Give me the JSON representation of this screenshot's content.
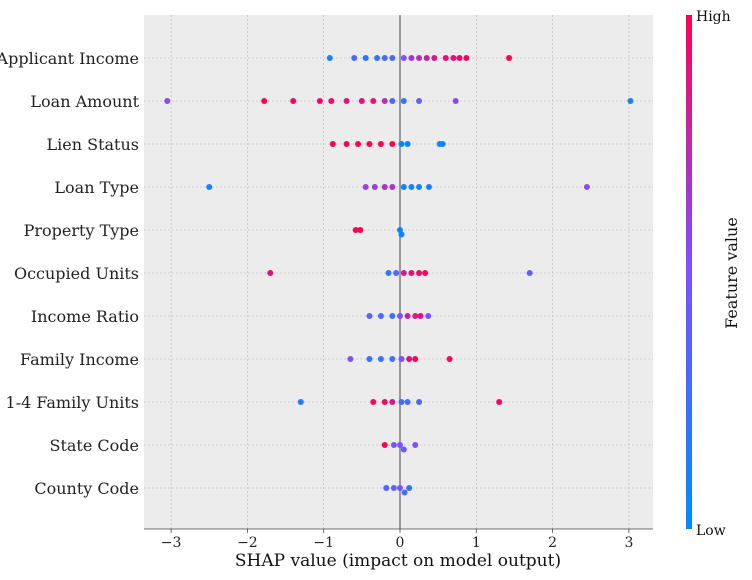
{
  "chart_data": {
    "type": "scatter",
    "subtype": "shap-beeswarm",
    "title": "",
    "xlabel": "SHAP value (impact on model output)",
    "ylabel": "",
    "xlim": [
      -3.35,
      3.35
    ],
    "xticks": [
      -3,
      -2,
      -1,
      0,
      1,
      2,
      3
    ],
    "xtick_labels": [
      "−3",
      "−2",
      "−1",
      "0",
      "1",
      "2",
      "3"
    ],
    "grid": true,
    "colorbar": {
      "title": "Feature value",
      "high_label": "High",
      "low_label": "Low",
      "low_color": "#008bfb",
      "mid_color": "#7c52ff",
      "high_color": "#ff0052"
    },
    "features": [
      {
        "name": "Applicant Income",
        "points": [
          [
            -0.92,
            0.1
          ],
          [
            -0.6,
            0.3
          ],
          [
            -0.45,
            0.2
          ],
          [
            -0.3,
            0.2
          ],
          [
            -0.2,
            0.3
          ],
          [
            -0.1,
            0.3
          ],
          [
            0.05,
            0.5
          ],
          [
            0.15,
            0.65
          ],
          [
            0.25,
            0.7
          ],
          [
            0.35,
            0.8
          ],
          [
            0.45,
            0.85
          ],
          [
            0.6,
            0.9
          ],
          [
            0.7,
            0.9
          ],
          [
            0.78,
            0.95
          ],
          [
            0.87,
            0.95
          ],
          [
            1.43,
            1.0
          ]
        ]
      },
      {
        "name": "Loan Amount",
        "points": [
          [
            -3.05,
            0.55
          ],
          [
            -1.78,
            1.0
          ],
          [
            -1.4,
            0.95
          ],
          [
            -1.05,
            0.95
          ],
          [
            -0.9,
            0.95
          ],
          [
            -0.7,
            0.9
          ],
          [
            -0.5,
            0.9
          ],
          [
            -0.35,
            0.9
          ],
          [
            -0.2,
            0.7
          ],
          [
            -0.1,
            0.3
          ],
          [
            0.05,
            0.2
          ],
          [
            0.25,
            0.4
          ],
          [
            0.73,
            0.55
          ],
          [
            3.02,
            0.1
          ]
        ]
      },
      {
        "name": "Lien Status",
        "points": [
          [
            -0.88,
            1.0
          ],
          [
            -0.7,
            1.0
          ],
          [
            -0.55,
            1.0
          ],
          [
            -0.4,
            1.0
          ],
          [
            -0.25,
            1.0
          ],
          [
            -0.1,
            1.0
          ],
          [
            0.02,
            0.05
          ],
          [
            0.1,
            0.05
          ],
          [
            0.52,
            0.05
          ],
          [
            0.56,
            0.05
          ]
        ]
      },
      {
        "name": "Loan Type",
        "points": [
          [
            -2.5,
            0.1
          ],
          [
            -0.45,
            0.6
          ],
          [
            -0.33,
            0.6
          ],
          [
            -0.2,
            0.7
          ],
          [
            -0.1,
            0.65
          ],
          [
            0.05,
            0.1
          ],
          [
            0.15,
            0.1
          ],
          [
            0.25,
            0.1
          ],
          [
            0.38,
            0.1
          ],
          [
            2.45,
            0.55
          ]
        ]
      },
      {
        "name": "Property Type",
        "points": [
          [
            -0.58,
            1.0
          ],
          [
            -0.52,
            1.0
          ],
          [
            0.0,
            0.05
          ],
          [
            0.02,
            0.05
          ]
        ]
      },
      {
        "name": "Occupied Units",
        "points": [
          [
            -1.7,
            0.9
          ],
          [
            -0.15,
            0.2
          ],
          [
            -0.05,
            0.3
          ],
          [
            0.05,
            0.85
          ],
          [
            0.15,
            0.9
          ],
          [
            0.25,
            0.95
          ],
          [
            0.33,
            0.95
          ],
          [
            1.7,
            0.4
          ]
        ]
      },
      {
        "name": "Income Ratio",
        "points": [
          [
            -0.4,
            0.35
          ],
          [
            -0.25,
            0.3
          ],
          [
            -0.1,
            0.2
          ],
          [
            0.0,
            0.5
          ],
          [
            0.1,
            0.8
          ],
          [
            0.2,
            0.85
          ],
          [
            0.27,
            0.9
          ],
          [
            0.37,
            0.5
          ]
        ]
      },
      {
        "name": "Family Income",
        "points": [
          [
            -0.65,
            0.5
          ],
          [
            -0.4,
            0.2
          ],
          [
            -0.25,
            0.2
          ],
          [
            -0.1,
            0.25
          ],
          [
            0.02,
            0.5
          ],
          [
            0.12,
            0.9
          ],
          [
            0.2,
            0.95
          ],
          [
            0.65,
            0.95
          ]
        ]
      },
      {
        "name": "1-4 Family Units",
        "points": [
          [
            -1.3,
            0.15
          ],
          [
            -0.35,
            0.95
          ],
          [
            -0.2,
            0.95
          ],
          [
            -0.1,
            0.85
          ],
          [
            0.02,
            0.3
          ],
          [
            0.1,
            0.25
          ],
          [
            0.25,
            0.3
          ],
          [
            1.3,
            0.95
          ]
        ]
      },
      {
        "name": "State Code",
        "points": [
          [
            -0.2,
            1.0
          ],
          [
            -0.08,
            0.5
          ],
          [
            0.0,
            0.5
          ],
          [
            0.05,
            0.4
          ],
          [
            0.2,
            0.5
          ]
        ]
      },
      {
        "name": "County Code",
        "points": [
          [
            -0.18,
            0.3
          ],
          [
            -0.08,
            0.4
          ],
          [
            0.0,
            0.5
          ],
          [
            0.06,
            0.3
          ],
          [
            0.12,
            0.2
          ]
        ]
      }
    ]
  }
}
